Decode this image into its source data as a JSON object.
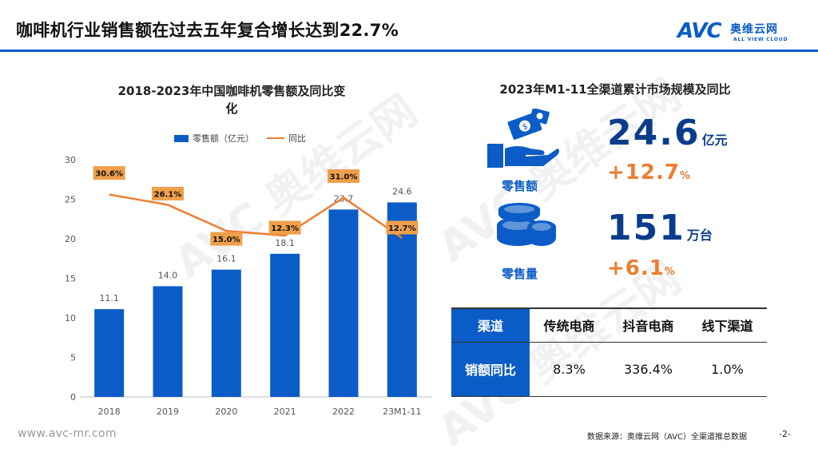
{
  "header": {
    "title": "咖啡机行业销售额在过去五年复合增长达到22.7%",
    "logo_mark": "AVC",
    "logo_cn": "奥维云网",
    "logo_en": "ALL VIEW CLOUD"
  },
  "colors": {
    "accent": "#0b5cc6",
    "line": "#ed7d31",
    "label_box": "#f0a04b",
    "dark_value": "#0b3c8c"
  },
  "chart_data": {
    "type": "bar",
    "title": "2018-2023年中国咖啡机零售额及同比变化",
    "title_line1": "2018-2023年中国咖啡机零售额及同比变",
    "title_line2": "化",
    "categories": [
      "2018",
      "2019",
      "2020",
      "2021",
      "2022",
      "23M1-11"
    ],
    "series": [
      {
        "name": "零售额（亿元）",
        "type": "bar",
        "values": [
          11.1,
          14.0,
          16.1,
          18.1,
          23.7,
          24.6
        ],
        "labels": [
          "11.1",
          "14.0",
          "16.1",
          "18.1",
          "23.7",
          "24.6"
        ]
      },
      {
        "name": "同比",
        "type": "line",
        "values": [
          30.6,
          26.1,
          15.0,
          12.3,
          31.0,
          12.7
        ],
        "labels": [
          "30.6%",
          "26.1%",
          "15.0%",
          "12.3%",
          "31.0%",
          "12.7%"
        ]
      }
    ],
    "ylim": [
      0,
      30
    ],
    "yticks": [
      "0",
      "5",
      "10",
      "15",
      "20",
      "25",
      "30"
    ],
    "line_plot_values": [
      25.6,
      24.3,
      21.0,
      20.4,
      25.2,
      20.1
    ],
    "xlabel": "",
    "ylabel": "",
    "legend": "top"
  },
  "market": {
    "title": "2023年M1-11全渠道累计市场规模及同比",
    "sales_amount": {
      "label": "零售额",
      "value": "24.6",
      "unit": "亿元",
      "growth": "+12.7",
      "growth_unit": "%"
    },
    "sales_volume": {
      "label": "零售量",
      "value": "151",
      "unit": "万台",
      "growth": "+6.1",
      "growth_unit": "%"
    }
  },
  "channel_table": {
    "header": "渠道",
    "columns": [
      "传统电商",
      "抖音电商",
      "线下渠道"
    ],
    "row_label": "销额同比",
    "values": [
      "8.3%",
      "336.4%",
      "1.0%"
    ]
  },
  "footer": {
    "url": "www.avc-mr.com",
    "source": "数据来源：奥维云网（AVC）全渠道推总数据",
    "page": "-2-"
  }
}
